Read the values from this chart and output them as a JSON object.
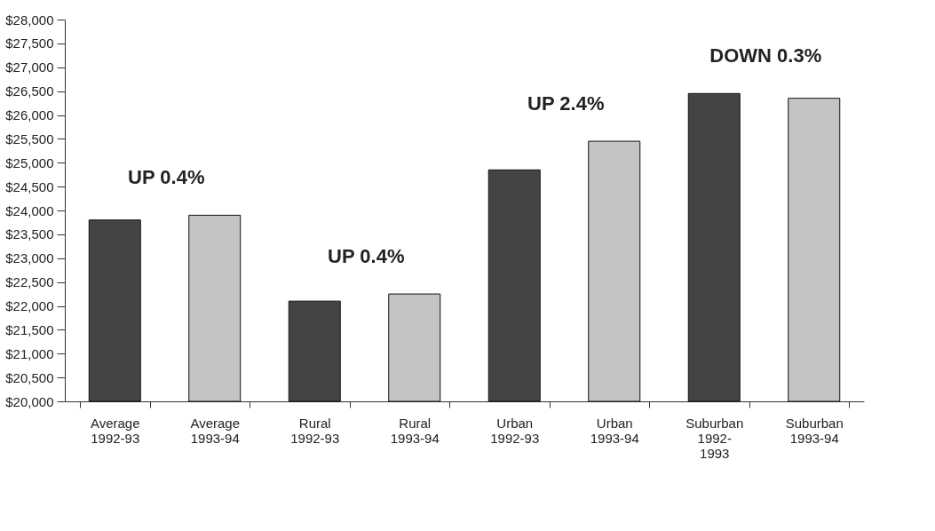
{
  "chart_data": {
    "type": "bar",
    "categories": [
      "Average\n1992-93",
      "Average\n1993-94",
      "Rural\n1992-93",
      "Rural\n1993-94",
      "Urban\n1992-93",
      "Urban\n1993-94",
      "Suburban\n1992-\n1993",
      "Suburban\n1993-94"
    ],
    "values": [
      23800,
      23900,
      22100,
      22250,
      24850,
      25450,
      26450,
      26350
    ],
    "colors": [
      "#444444",
      "#c4c4c4",
      "#444444",
      "#c4c4c4",
      "#444444",
      "#c4c4c4",
      "#444444",
      "#c4c4c4"
    ],
    "ylim": [
      20000,
      28000
    ],
    "yticks": [
      {
        "value": 20000,
        "label": "$20,000"
      },
      {
        "value": 20500,
        "label": "$20,500"
      },
      {
        "value": 21000,
        "label": "$21,000"
      },
      {
        "value": 21500,
        "label": "$21,500"
      },
      {
        "value": 22000,
        "label": "$22,000"
      },
      {
        "value": 22500,
        "label": "$22,500"
      },
      {
        "value": 23000,
        "label": "$23,000"
      },
      {
        "value": 23500,
        "label": "$23,500"
      },
      {
        "value": 24000,
        "label": "$24,000"
      },
      {
        "value": 24500,
        "label": "$24,500"
      },
      {
        "value": 25000,
        "label": "$25,000"
      },
      {
        "value": 25500,
        "label": "$25,500"
      },
      {
        "value": 26000,
        "label": "$26,000"
      },
      {
        "value": 26500,
        "label": "$26,500"
      },
      {
        "value": 27000,
        "label": "$27,000"
      },
      {
        "value": 27500,
        "label": "$27,500"
      },
      {
        "value": 28000,
        "label": "$28,000"
      }
    ],
    "annotations": [
      "UP 0.4%",
      "UP 0.4%",
      "UP 2.4%",
      "DOWN 0.3%"
    ],
    "relative": false
  }
}
